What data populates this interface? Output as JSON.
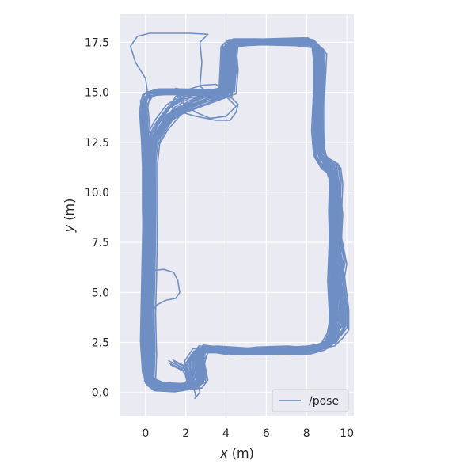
{
  "chart_data": {
    "type": "line",
    "title": "",
    "xlabel": "x (m)",
    "ylabel": "y (m)",
    "xlabel_var": "x",
    "xlabel_unit": " (m)",
    "ylabel_var": "y",
    "ylabel_unit": " (m)",
    "xlim": [
      -1.25,
      10.35
    ],
    "ylim": [
      -1.2,
      18.9
    ],
    "xticks": [
      0,
      2,
      4,
      6,
      8,
      10
    ],
    "xtick_labels": [
      "0",
      "2",
      "4",
      "6",
      "8",
      "10"
    ],
    "yticks": [
      0,
      2.5,
      5,
      7.5,
      10,
      12.5,
      15,
      17.5
    ],
    "ytick_labels": [
      "0.0",
      "2.5",
      "5.0",
      "7.5",
      "10.0",
      "12.5",
      "15.0",
      "17.5"
    ],
    "grid": true,
    "legend_position": "lower-right",
    "colors": {
      "series": "#6f8fc4",
      "background": "#eaeaf2",
      "grid": "#ffffff"
    },
    "series": [
      {
        "name": "/pose",
        "laps": [
          [
            [
              1.3,
              1.5
            ],
            [
              1.9,
              1.2
            ],
            [
              2.1,
              0.9
            ],
            [
              2.2,
              0.5
            ],
            [
              2.0,
              0.3
            ],
            [
              1.2,
              0.25
            ],
            [
              0.5,
              0.3
            ],
            [
              0.1,
              0.6
            ],
            [
              0.0,
              1.5
            ],
            [
              -0.05,
              3.0
            ],
            [
              0.0,
              5.0
            ],
            [
              0.05,
              7.5
            ],
            [
              0.1,
              10.0
            ],
            [
              0.05,
              12.0
            ],
            [
              0.0,
              13.5
            ],
            [
              -0.1,
              14.5
            ],
            [
              0.2,
              14.95
            ],
            [
              1.0,
              15.0
            ],
            [
              2.0,
              15.0
            ],
            [
              3.0,
              14.95
            ],
            [
              3.9,
              14.9
            ],
            [
              4.0,
              15.8
            ],
            [
              4.0,
              17.3
            ],
            [
              4.3,
              17.55
            ],
            [
              5.5,
              17.55
            ],
            [
              7.0,
              17.5
            ],
            [
              8.0,
              17.55
            ],
            [
              8.4,
              17.4
            ],
            [
              8.5,
              16.5
            ],
            [
              8.5,
              14.0
            ],
            [
              8.55,
              12.0
            ],
            [
              8.7,
              11.5
            ],
            [
              9.1,
              11.1
            ],
            [
              9.3,
              10.5
            ],
            [
              9.3,
              8.0
            ],
            [
              9.2,
              5.5
            ],
            [
              9.3,
              3.5
            ],
            [
              9.1,
              2.5
            ],
            [
              8.7,
              2.2
            ],
            [
              8.0,
              2.0
            ],
            [
              6.5,
              2.05
            ],
            [
              5.0,
              2.1
            ],
            [
              3.5,
              2.2
            ],
            [
              2.5,
              2.1
            ],
            [
              2.1,
              1.5
            ],
            [
              2.2,
              0.5
            ],
            [
              1.9,
              0.2
            ],
            [
              1.0,
              0.2
            ],
            [
              0.4,
              0.35
            ],
            [
              0.0,
              0.9
            ],
            [
              -0.1,
              2.5
            ],
            [
              -0.05,
              5.0
            ],
            [
              0.0,
              7.5
            ],
            [
              0.05,
              10.0
            ],
            [
              -0.05,
              12.5
            ],
            [
              -0.15,
              14.0
            ],
            [
              0.0,
              14.8
            ],
            [
              0.6,
              15.05
            ],
            [
              1.5,
              15.05
            ],
            [
              3.8,
              15.0
            ]
          ],
          [
            [
              3.8,
              15.0
            ],
            [
              3.85,
              16.0
            ],
            [
              3.9,
              17.2
            ],
            [
              4.2,
              17.5
            ],
            [
              6.0,
              17.55
            ],
            [
              7.8,
              17.6
            ],
            [
              8.3,
              17.5
            ],
            [
              8.6,
              17.0
            ],
            [
              8.5,
              15.0
            ],
            [
              8.4,
              13.0
            ],
            [
              8.5,
              11.8
            ],
            [
              8.8,
              11.3
            ],
            [
              9.2,
              11.0
            ],
            [
              9.4,
              10.0
            ],
            [
              9.3,
              8.5
            ],
            [
              9.4,
              6.5
            ],
            [
              9.5,
              5.0
            ],
            [
              9.4,
              3.8
            ],
            [
              9.4,
              2.8
            ],
            [
              8.9,
              2.3
            ],
            [
              7.5,
              2.1
            ],
            [
              6.0,
              2.0
            ],
            [
              4.5,
              2.05
            ],
            [
              3.2,
              2.2
            ],
            [
              2.8,
              2.25
            ],
            [
              2.6,
              1.9
            ],
            [
              2.7,
              0.8
            ],
            [
              2.4,
              0.3
            ],
            [
              1.5,
              0.15
            ],
            [
              0.5,
              0.2
            ],
            [
              0.1,
              0.5
            ],
            [
              0.2,
              1.5
            ],
            [
              0.15,
              3.0
            ],
            [
              0.2,
              5.0
            ],
            [
              0.25,
              7.5
            ],
            [
              0.3,
              10.0
            ],
            [
              0.2,
              12.0
            ],
            [
              0.25,
              12.8
            ],
            [
              0.6,
              13.5
            ],
            [
              1.2,
              14.3
            ],
            [
              2.0,
              14.8
            ],
            [
              3.2,
              15.0
            ],
            [
              4.2,
              15.2
            ],
            [
              4.3,
              16.5
            ],
            [
              4.4,
              17.45
            ],
            [
              5.5,
              17.5
            ],
            [
              7.5,
              17.45
            ],
            [
              8.4,
              17.35
            ],
            [
              8.8,
              17.0
            ],
            [
              8.7,
              15.0
            ],
            [
              8.7,
              12.0
            ],
            [
              9.0,
              11.6
            ],
            [
              9.5,
              11.3
            ],
            [
              9.6,
              10.5
            ],
            [
              9.5,
              8.0
            ],
            [
              9.8,
              6.5
            ],
            [
              9.6,
              5.3
            ],
            [
              9.8,
              4.5
            ],
            [
              9.7,
              3.5
            ],
            [
              9.3,
              2.6
            ],
            [
              8.5,
              2.2
            ],
            [
              7.0,
              2.15
            ],
            [
              5.5,
              2.1
            ],
            [
              4.0,
              2.1
            ],
            [
              3.0,
              2.2
            ],
            [
              2.7,
              1.7
            ],
            [
              2.9,
              0.7
            ],
            [
              2.6,
              0.3
            ],
            [
              1.8,
              0.25
            ],
            [
              1.0,
              0.3
            ],
            [
              0.3,
              0.6
            ],
            [
              0.35,
              2.0
            ],
            [
              0.3,
              4.0
            ],
            [
              0.35,
              6.0
            ],
            [
              0.4,
              9.0
            ],
            [
              0.4,
              11.5
            ],
            [
              0.5,
              12.5
            ],
            [
              0.9,
              13.2
            ],
            [
              1.5,
              13.9
            ],
            [
              2.3,
              14.5
            ],
            [
              3.3,
              14.9
            ],
            [
              4.1,
              14.9
            ]
          ],
          [
            [
              4.1,
              14.9
            ],
            [
              4.2,
              16.0
            ],
            [
              4.1,
              17.4
            ],
            [
              4.5,
              17.5
            ],
            [
              6.5,
              17.5
            ],
            [
              8.0,
              17.6
            ],
            [
              8.5,
              17.3
            ],
            [
              8.7,
              16.0
            ],
            [
              8.6,
              14.0
            ],
            [
              8.65,
              12.5
            ],
            [
              8.8,
              11.8
            ],
            [
              9.3,
              11.2
            ],
            [
              9.45,
              10.2
            ],
            [
              9.6,
              9.0
            ],
            [
              9.5,
              7.0
            ],
            [
              9.7,
              5.8
            ],
            [
              9.9,
              4.2
            ],
            [
              9.9,
              3.2
            ],
            [
              9.6,
              2.8
            ],
            [
              9.2,
              2.4
            ],
            [
              8.0,
              2.2
            ],
            [
              6.5,
              2.1
            ],
            [
              5.0,
              2.0
            ],
            [
              3.8,
              2.1
            ],
            [
              2.8,
              2.1
            ],
            [
              2.4,
              1.8
            ],
            [
              2.5,
              0.9
            ],
            [
              2.3,
              0.4
            ],
            [
              1.5,
              0.3
            ],
            [
              0.7,
              0.25
            ],
            [
              0.2,
              0.5
            ],
            [
              0.05,
              1.2
            ],
            [
              0.1,
              3.0
            ],
            [
              0.0,
              5.5
            ],
            [
              0.1,
              8.0
            ],
            [
              0.15,
              10.5
            ],
            [
              0.3,
              12.2
            ],
            [
              0.7,
              13.0
            ],
            [
              1.2,
              13.8
            ],
            [
              1.8,
              14.2
            ],
            [
              2.8,
              14.6
            ],
            [
              3.6,
              14.8
            ],
            [
              4.3,
              15.0
            ]
          ],
          [
            [
              4.3,
              15.0
            ],
            [
              4.4,
              16.2
            ],
            [
              4.3,
              17.35
            ],
            [
              5.0,
              17.45
            ],
            [
              7.0,
              17.55
            ],
            [
              8.2,
              17.5
            ],
            [
              8.6,
              17.1
            ],
            [
              8.6,
              15.5
            ],
            [
              8.5,
              13.5
            ],
            [
              8.6,
              12.2
            ],
            [
              9.0,
              11.4
            ],
            [
              9.3,
              10.8
            ],
            [
              9.25,
              9.0
            ],
            [
              9.3,
              7.0
            ],
            [
              9.35,
              5.0
            ],
            [
              9.25,
              3.0
            ],
            [
              8.9,
              2.4
            ],
            [
              8.2,
              2.1
            ],
            [
              7.0,
              2.2
            ],
            [
              5.5,
              2.15
            ],
            [
              4.2,
              2.0
            ],
            [
              3.3,
              2.15
            ],
            [
              2.9,
              2.1
            ],
            [
              2.7,
              1.4
            ],
            [
              2.8,
              0.6
            ],
            [
              2.2,
              0.3
            ],
            [
              1.2,
              0.35
            ],
            [
              0.5,
              0.4
            ],
            [
              0.15,
              0.8
            ],
            [
              0.1,
              2.0
            ],
            [
              0.05,
              4.0
            ],
            [
              0.1,
              6.5
            ],
            [
              0.0,
              9.0
            ],
            [
              0.0,
              11.0
            ],
            [
              0.1,
              12.0
            ],
            [
              0.4,
              12.8
            ],
            [
              1.0,
              13.6
            ],
            [
              1.6,
              14.0
            ],
            [
              2.4,
              14.3
            ],
            [
              3.2,
              14.6
            ],
            [
              3.9,
              14.85
            ]
          ],
          [
            [
              3.9,
              14.85
            ],
            [
              4.3,
              14.7
            ],
            [
              4.6,
              14.4
            ],
            [
              4.5,
              14.0
            ],
            [
              4.2,
              13.6
            ],
            [
              3.5,
              13.6
            ],
            [
              2.5,
              13.8
            ],
            [
              1.8,
              14.0
            ],
            [
              1.2,
              14.3
            ],
            [
              1.5,
              14.8
            ],
            [
              2.2,
              14.9
            ],
            [
              3.3,
              15.0
            ],
            [
              3.9,
              15.05
            ]
          ]
        ],
        "excursions": [
          [
            [
              3.1,
              15.0
            ],
            [
              2.7,
              15.3
            ],
            [
              2.8,
              16.5
            ],
            [
              2.7,
              17.5
            ],
            [
              3.1,
              17.9
            ],
            [
              2.2,
              17.95
            ],
            [
              1.0,
              17.95
            ],
            [
              0.2,
              17.95
            ],
            [
              -0.4,
              17.8
            ],
            [
              -0.75,
              17.3
            ],
            [
              -0.5,
              16.5
            ],
            [
              0.0,
              15.7
            ],
            [
              0.1,
              15.0
            ]
          ],
          [
            [
              0.0,
              5.8
            ],
            [
              0.4,
              6.1
            ],
            [
              0.9,
              6.15
            ],
            [
              1.4,
              6.0
            ],
            [
              1.6,
              5.6
            ],
            [
              1.7,
              5.0
            ],
            [
              1.5,
              4.7
            ],
            [
              1.0,
              4.6
            ],
            [
              0.6,
              4.4
            ],
            [
              0.45,
              4.2
            ]
          ],
          [
            [
              4.0,
              15.0
            ],
            [
              3.5,
              15.4
            ],
            [
              2.8,
              15.35
            ],
            [
              2.0,
              15.1
            ],
            [
              1.5,
              15.2
            ],
            [
              1.8,
              14.5
            ],
            [
              2.5,
              14.0
            ],
            [
              3.2,
              13.7
            ],
            [
              4.0,
              13.8
            ],
            [
              4.5,
              14.3
            ],
            [
              4.0,
              14.8
            ]
          ],
          [
            [
              2.3,
              0.6
            ],
            [
              2.5,
              -0.2
            ],
            [
              2.45,
              -0.3
            ],
            [
              2.7,
              0.0
            ],
            [
              2.6,
              0.4
            ]
          ]
        ]
      }
    ]
  }
}
